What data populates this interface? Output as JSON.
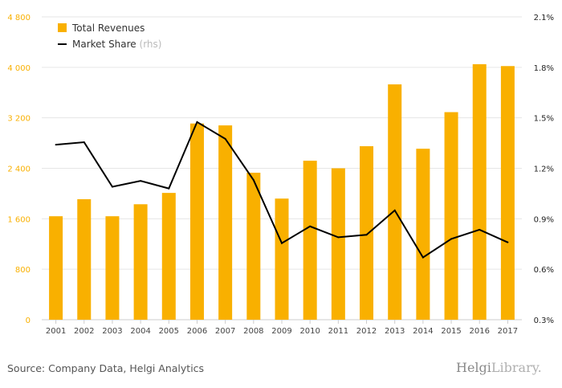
{
  "chart_data": {
    "type": "bar",
    "title": "",
    "categories": [
      "2001",
      "2002",
      "2003",
      "2004",
      "2005",
      "2006",
      "2007",
      "2008",
      "2009",
      "2010",
      "2011",
      "2012",
      "2013",
      "2014",
      "2015",
      "2016",
      "2017"
    ],
    "series": [
      {
        "name": "Total Revenues",
        "type": "bar",
        "axis": "left",
        "color": "#f9b000",
        "values": [
          1640,
          1910,
          1640,
          1830,
          2010,
          3110,
          3080,
          2330,
          1920,
          2520,
          2400,
          2750,
          3730,
          2710,
          3290,
          4050,
          4020
        ]
      },
      {
        "name": "Market Share",
        "name_suffix": "(rhs)",
        "type": "line",
        "axis": "right",
        "color": "#000000",
        "values": [
          1.34,
          1.355,
          1.09,
          1.125,
          1.08,
          1.475,
          1.375,
          1.13,
          0.755,
          0.855,
          0.79,
          0.805,
          0.95,
          0.67,
          0.78,
          0.835,
          0.76
        ]
      }
    ],
    "left_axis": {
      "ylim": [
        0,
        4800
      ],
      "ticks": [
        "0",
        "800",
        "1 600",
        "2 400",
        "3 200",
        "4 000",
        "4 800"
      ],
      "color": "#f9b000"
    },
    "right_axis": {
      "ylim": [
        0.3,
        2.1
      ],
      "ticks": [
        "0.3%",
        "0.6%",
        "0.9%",
        "1.2%",
        "1.5%",
        "1.8%",
        "2.1%"
      ]
    },
    "grid": true,
    "legend": "top-left"
  },
  "footer": {
    "source": "Source: Company Data, Helgi Analytics",
    "logo_main": "Helgi",
    "logo_sub": "Library."
  }
}
